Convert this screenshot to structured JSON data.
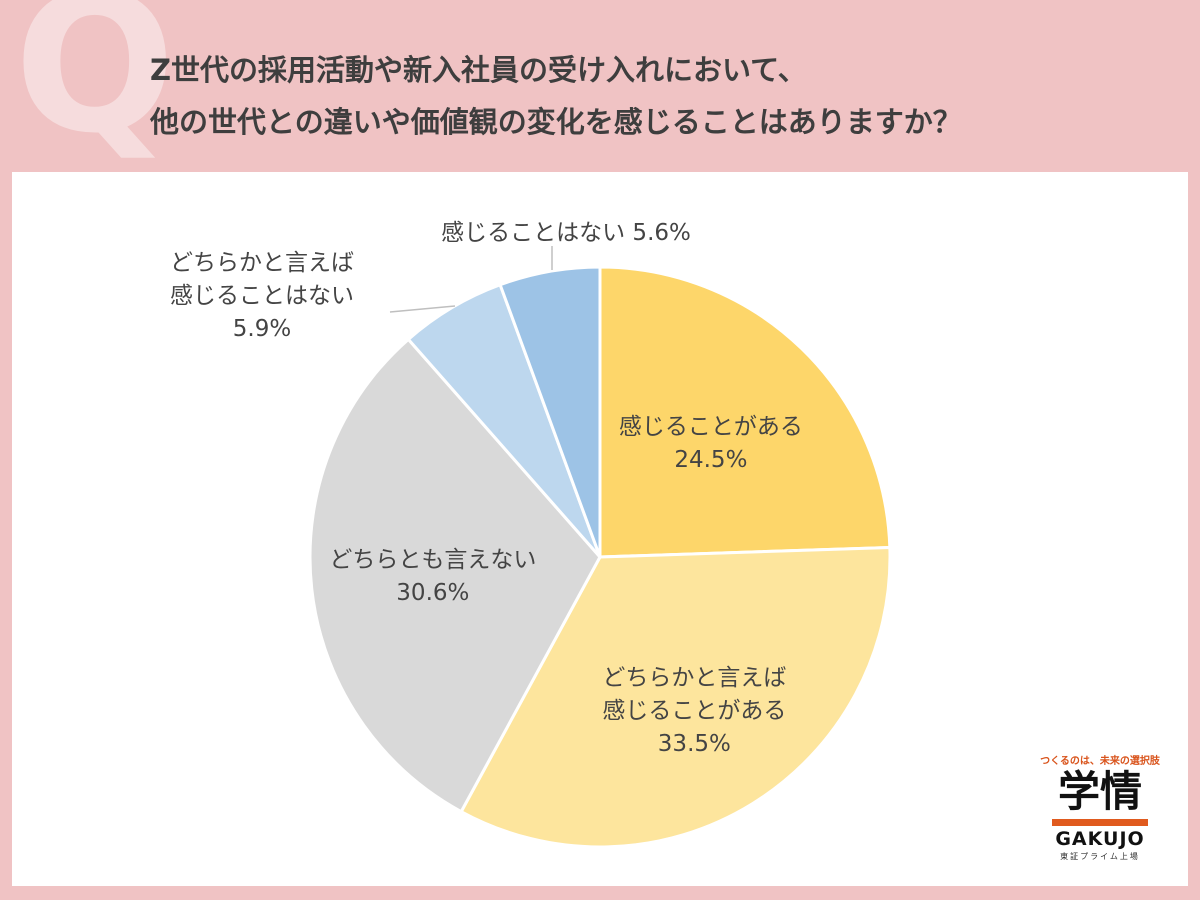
{
  "title": {
    "line1": "Z世代の採用活動や新入社員の受け入れにおいて、",
    "line2": "他の世代との違いや価値観の変化を感じることはありますか？"
  },
  "q_mark": "Q",
  "colors": {
    "background": "#f0c3c4",
    "panel": "#ffffff",
    "slice_1": "#fdd66a",
    "slice_2": "#fde59d",
    "slice_3": "#d9d9d9",
    "slice_4": "#bdd7ee",
    "slice_5": "#9dc3e6"
  },
  "chart_data": {
    "type": "pie",
    "start_angle_deg": 0,
    "direction": "clockwise",
    "slices": [
      {
        "label_lines": [
          "感じることがある",
          "24.5%"
        ],
        "value": 24.5,
        "color": "#fdd66a",
        "label_position": "inside"
      },
      {
        "label_lines": [
          "どちらかと言えば",
          "感じることがある",
          "33.5%"
        ],
        "value": 33.5,
        "color": "#fde59d",
        "label_position": "inside"
      },
      {
        "label_lines": [
          "どちらとも言えない",
          "30.6%"
        ],
        "value": 30.6,
        "color": "#d9d9d9",
        "label_position": "inside"
      },
      {
        "label_lines": [
          "どちらかと言えば",
          "感じることはない",
          "5.9%"
        ],
        "value": 5.9,
        "color": "#bdd7ee",
        "label_position": "outside-left"
      },
      {
        "label_lines": [
          "感じることはない 5.6%"
        ],
        "value": 5.6,
        "color": "#9dc3e6",
        "label_position": "outside-top"
      }
    ]
  },
  "logo": {
    "tagline": "つくるのは、未来の選択肢",
    "name_kanji": "学情",
    "name_en": "GAKUJO",
    "subtext": "東証プライム上場"
  }
}
